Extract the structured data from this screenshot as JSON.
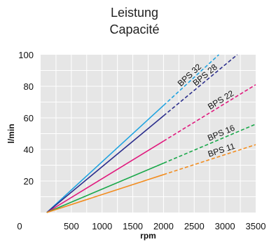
{
  "chart_data": {
    "type": "line",
    "title": "Leistung",
    "subtitle": "Capacité",
    "xlabel": "rpm",
    "ylabel": "l/min",
    "xlim": [
      0,
      3500
    ],
    "ylim": [
      0,
      100
    ],
    "x_ticks": [
      0,
      500,
      1000,
      1500,
      2000,
      2500,
      3000,
      3500
    ],
    "y_ticks": [
      20,
      40,
      60,
      80,
      100
    ],
    "grid": true,
    "solid_until_rpm": 2000,
    "series": [
      {
        "name": "BPS 32",
        "color": "#1fa3e0",
        "x": [
          100,
          2900
        ],
        "y": [
          0,
          100
        ]
      },
      {
        "name": "BPS 28",
        "color": "#2b2e8c",
        "x": [
          100,
          3200
        ],
        "y": [
          0,
          100
        ]
      },
      {
        "name": "BPS 22",
        "color": "#e0197d",
        "x": [
          100,
          3500
        ],
        "y": [
          0,
          81
        ]
      },
      {
        "name": "BPS 16",
        "color": "#1aa84a",
        "x": [
          100,
          3500
        ],
        "y": [
          0,
          56
        ]
      },
      {
        "name": "BPS 11",
        "color": "#f28c1e",
        "x": [
          100,
          3500
        ],
        "y": [
          0,
          43
        ]
      }
    ]
  }
}
